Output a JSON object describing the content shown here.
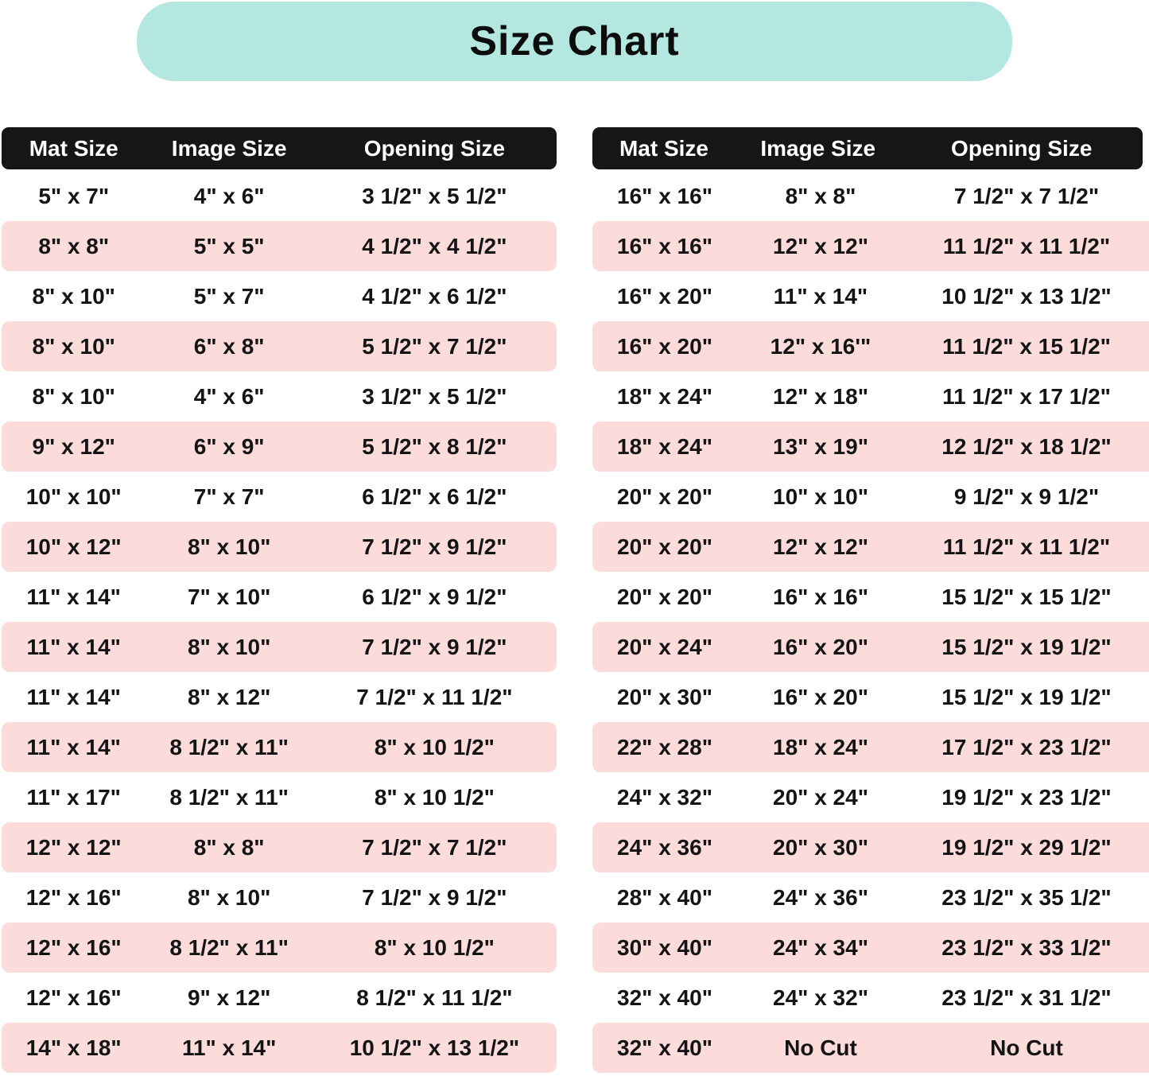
{
  "title": "Size Chart",
  "colors": {
    "banner_bg": "#b4e7df",
    "row_alt_bg": "#fcdbdb",
    "header_bg": "#161616",
    "header_text": "#ffffff",
    "body_text": "#141414",
    "page_bg": "#ffffff"
  },
  "chart_data": [
    {
      "type": "table",
      "name": "left-table",
      "columns": [
        "Mat Size",
        "Image Size",
        "Opening Size"
      ],
      "rows": [
        [
          "5\" x 7\"",
          "4\" x 6\"",
          "3 1/2\" x 5 1/2\""
        ],
        [
          "8\" x 8\"",
          "5\" x 5\"",
          "4 1/2\" x 4 1/2\""
        ],
        [
          "8\" x 10\"",
          "5\" x 7\"",
          "4 1/2\" x 6 1/2\""
        ],
        [
          "8\" x 10\"",
          "6\" x 8\"",
          "5 1/2\" x 7 1/2\""
        ],
        [
          "8\" x 10\"",
          "4\" x 6\"",
          "3 1/2\" x 5 1/2\""
        ],
        [
          "9\" x 12\"",
          "6\" x 9\"",
          "5 1/2\" x 8 1/2\""
        ],
        [
          "10\" x 10\"",
          "7\" x 7\"",
          "6 1/2\" x 6 1/2\""
        ],
        [
          "10\" x 12\"",
          "8\" x 10\"",
          "7 1/2\" x 9 1/2\""
        ],
        [
          "11\" x 14\"",
          "7\" x 10\"",
          "6 1/2\" x 9 1/2\""
        ],
        [
          "11\" x 14\"",
          "8\" x 10\"",
          "7 1/2\" x 9 1/2\""
        ],
        [
          "11\" x 14\"",
          "8\" x 12\"",
          "7 1/2\" x 11 1/2\""
        ],
        [
          "11\" x 14\"",
          "8 1/2\" x 11\"",
          "8\" x 10 1/2\""
        ],
        [
          "11\" x 17\"",
          "8 1/2\" x 11\"",
          "8\" x 10 1/2\""
        ],
        [
          "12\" x 12\"",
          "8\" x 8\"",
          "7 1/2\" x 7 1/2\""
        ],
        [
          "12\" x 16\"",
          "8\" x 10\"",
          "7 1/2\" x 9 1/2\""
        ],
        [
          "12\" x 16\"",
          "8 1/2\" x 11\"",
          "8\" x 10 1/2\""
        ],
        [
          "12\" x 16\"",
          "9\" x 12\"",
          "8 1/2\" x 11 1/2\""
        ],
        [
          "14\" x 18\"",
          "11\" x 14\"",
          "10 1/2\" x 13 1/2\""
        ]
      ]
    },
    {
      "type": "table",
      "name": "right-table",
      "columns": [
        "Mat Size",
        "Image Size",
        "Opening Size"
      ],
      "rows": [
        [
          "16\" x 16\"",
          "8\" x 8\"",
          "7 1/2\" x 7 1/2\""
        ],
        [
          "16\" x 16\"",
          "12\" x 12\"",
          "11 1/2\" x 11 1/2\""
        ],
        [
          "16\" x 20\"",
          "11\" x 14\"",
          "10 1/2\" x 13 1/2\""
        ],
        [
          "16\" x 20\"",
          "12\" x 16'\"",
          "11 1/2\" x 15 1/2\""
        ],
        [
          "18\" x 24\"",
          "12\" x 18\"",
          "11 1/2\" x 17 1/2\""
        ],
        [
          "18\" x 24\"",
          "13\" x 19\"",
          "12 1/2\" x 18 1/2\""
        ],
        [
          "20\" x 20\"",
          "10\" x 10\"",
          "9 1/2\" x 9 1/2\""
        ],
        [
          "20\" x 20\"",
          "12\" x 12\"",
          "11 1/2\" x 11 1/2\""
        ],
        [
          "20\" x 20\"",
          "16\" x 16\"",
          "15 1/2\" x 15 1/2\""
        ],
        [
          "20\" x 24\"",
          "16\" x 20\"",
          "15 1/2\" x 19 1/2\""
        ],
        [
          "20\" x 30\"",
          "16\" x 20\"",
          "15 1/2\" x 19 1/2\""
        ],
        [
          "22\" x 28\"",
          "18\" x 24\"",
          "17 1/2\" x 23 1/2\""
        ],
        [
          "24\" x 32\"",
          "20\" x 24\"",
          "19 1/2\" x 23 1/2\""
        ],
        [
          "24\" x 36\"",
          "20\" x 30\"",
          "19 1/2\" x 29 1/2\""
        ],
        [
          "28\" x 40\"",
          "24\" x 36\"",
          "23 1/2\" x 35 1/2\""
        ],
        [
          "30\" x 40\"",
          "24\" x 34\"",
          "23 1/2\" x 33 1/2\""
        ],
        [
          "32\" x 40\"",
          "24\" x 32\"",
          "23 1/2\" x 31 1/2\""
        ],
        [
          "32\" x 40\"",
          "No Cut",
          "No Cut"
        ]
      ]
    }
  ]
}
